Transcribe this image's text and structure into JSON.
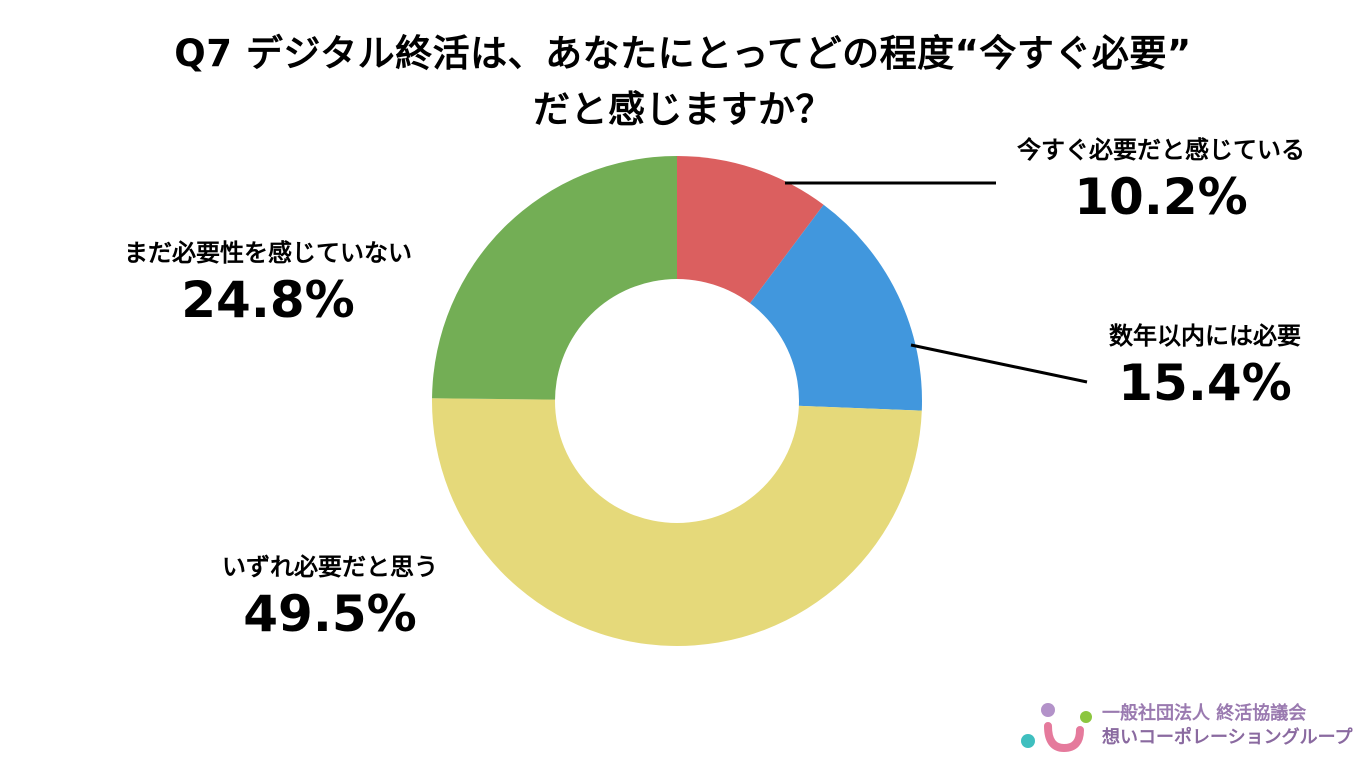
{
  "title": {
    "line1": "Q7 デジタル終活は、あなたにとってどの程度“今すぐ必要”",
    "line2": "だと感じますか？"
  },
  "chart_data": {
    "type": "pie",
    "variant": "donut",
    "title": "Q7 デジタル終活は、あなたにとってどの程度“今すぐ必要”だと感じますか？",
    "unit": "%",
    "legend": "none",
    "slices": [
      {
        "label": "今すぐ必要だと感じている",
        "value": 10.2,
        "display": "10.2%",
        "color": "#db5f5f"
      },
      {
        "label": "数年以内には必要",
        "value": 15.4,
        "display": "15.4%",
        "color": "#4197dd"
      },
      {
        "label": "いずれ必要だと思う",
        "value": 49.5,
        "display": "49.5%",
        "color": "#e5d97a"
      },
      {
        "label": "まだ必要性を感じていない",
        "value": 24.8,
        "display": "24.8%",
        "color": "#73ae55"
      }
    ]
  },
  "org": {
    "line1": "一般社団法人 終活協議会",
    "line2": "想いコーポレーショングループ"
  }
}
